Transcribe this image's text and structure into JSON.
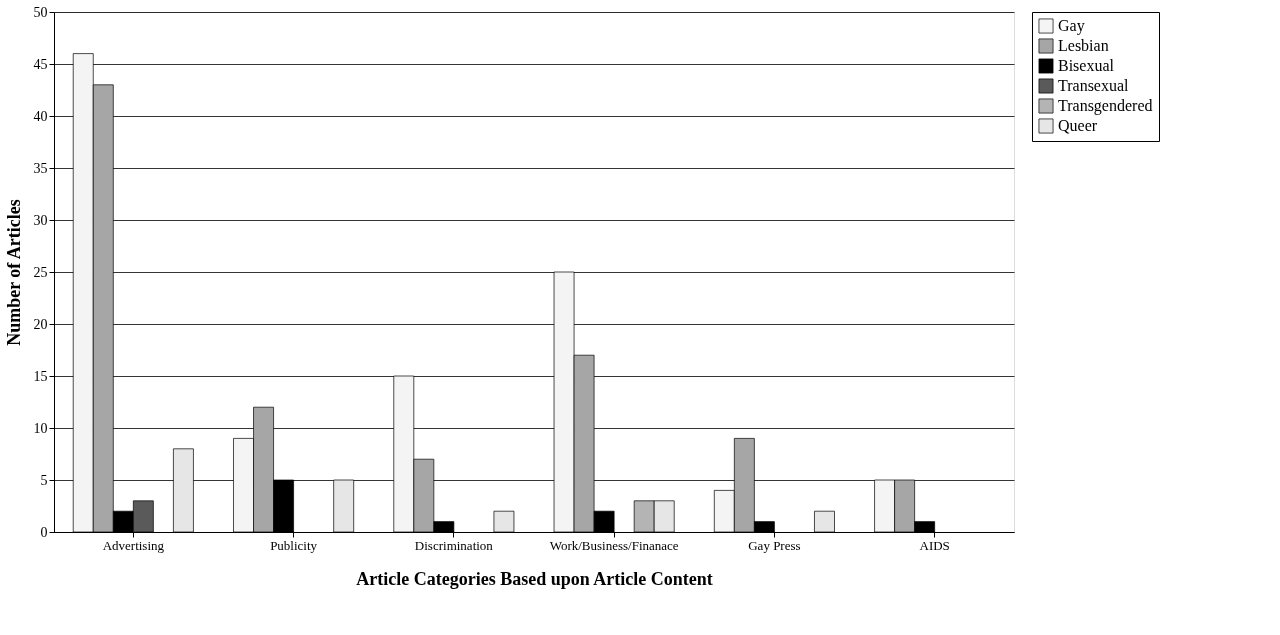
{
  "chart_data": {
    "type": "bar",
    "xlabel": "Article Categories Based upon Article Content",
    "ylabel": "Number of Articles",
    "categories": [
      "Advertising",
      "Publicity",
      "Discrimination",
      "Work/Business/Finanace",
      "Gay Press",
      "AIDS"
    ],
    "series": [
      {
        "name": "Gay",
        "color": "#f4f4f4",
        "values": [
          46,
          9,
          15,
          25,
          4,
          5
        ]
      },
      {
        "name": "Lesbian",
        "color": "#a6a6a6",
        "values": [
          43,
          12,
          7,
          17,
          9,
          5
        ]
      },
      {
        "name": "Bisexual",
        "color": "#000000",
        "values": [
          2,
          5,
          1,
          2,
          1,
          1
        ]
      },
      {
        "name": "Transexual",
        "color": "#5a5a5a",
        "values": [
          3,
          null,
          null,
          null,
          null,
          null
        ]
      },
      {
        "name": "Transgendered",
        "color": "#b4b4b4",
        "values": [
          null,
          null,
          null,
          3,
          null,
          null
        ]
      },
      {
        "name": "Queer",
        "color": "#e6e6e6",
        "values": [
          8,
          5,
          2,
          3,
          2,
          null
        ]
      }
    ],
    "ylim": [
      0,
      50
    ],
    "yticks": [
      0,
      5,
      10,
      15,
      20,
      25,
      30,
      35,
      40,
      45,
      50
    ],
    "grid": "y",
    "legend": "right"
  }
}
